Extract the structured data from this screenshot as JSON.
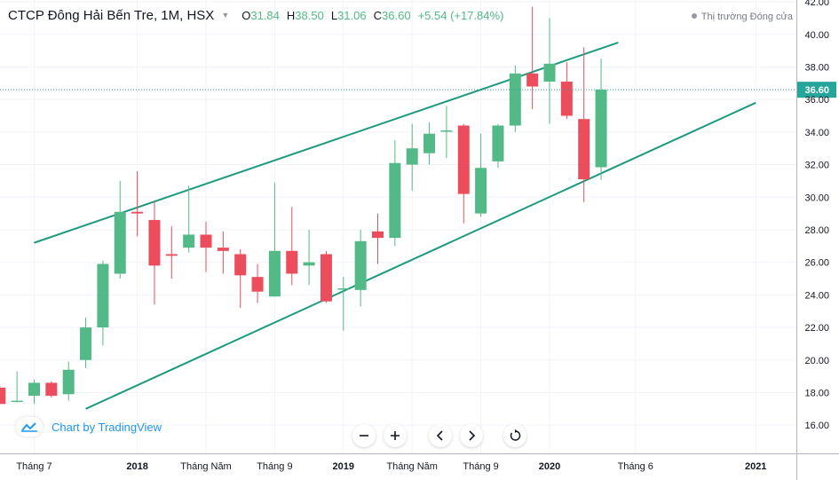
{
  "header": {
    "symbol": "CTCP Đông Hải Bến Tre, 1M, HSX",
    "open_label": "O",
    "open": "31.84",
    "high_label": "H",
    "high": "38.50",
    "low_label": "L",
    "low": "31.06",
    "close_label": "C",
    "close": "36.60",
    "change": "+5.54 (+17.84%)",
    "market_status": "Thị trường Đóng cửa"
  },
  "branding": {
    "text": "Chart by TradingView"
  },
  "toolbar": {
    "buttons": [
      "zoom-out",
      "zoom-in",
      "scroll-left",
      "scroll-right",
      "reset"
    ]
  },
  "colors": {
    "up": "#53b987",
    "down": "#eb4d5c",
    "trendline": "#1e9a7e",
    "last_price": "#26a69a",
    "grid": "#f0f3fa"
  },
  "chart_data": {
    "type": "candlestick",
    "interval": "1M",
    "y_axis": {
      "min": 15,
      "max": 42.5,
      "ticks": [
        "16.00",
        "18.00",
        "20.00",
        "22.00",
        "24.00",
        "26.00",
        "28.00",
        "30.00",
        "32.00",
        "34.00",
        "36.00",
        "38.00",
        "40.00",
        "42.00"
      ]
    },
    "x_axis": {
      "start": "2017-05",
      "end": "2021-01",
      "ticks": [
        {
          "label": "Tháng 7",
          "date": "2017-07"
        },
        {
          "label": "2018",
          "date": "2018-01",
          "bold": true
        },
        {
          "label": "Tháng Năm",
          "date": "2018-05"
        },
        {
          "label": "Tháng 9",
          "date": "2018-09"
        },
        {
          "label": "2019",
          "date": "2019-01",
          "bold": true
        },
        {
          "label": "Tháng Năm",
          "date": "2019-05"
        },
        {
          "label": "Tháng 9",
          "date": "2019-09"
        },
        {
          "label": "2020",
          "date": "2020-01",
          "bold": true
        },
        {
          "label": "Tháng 6",
          "date": "2020-06"
        },
        {
          "label": "2021",
          "date": "2021-01",
          "bold": true
        }
      ]
    },
    "last_price": "36.60",
    "candles": [
      {
        "date": "2017-05",
        "o": 18.3,
        "h": 18.4,
        "l": 17.3,
        "c": 17.3
      },
      {
        "date": "2017-06",
        "o": 17.5,
        "h": 19.3,
        "l": 17.4,
        "c": 17.5
      },
      {
        "date": "2017-07",
        "o": 17.8,
        "h": 18.8,
        "l": 17.3,
        "c": 18.6
      },
      {
        "date": "2017-08",
        "o": 18.6,
        "h": 18.7,
        "l": 17.7,
        "c": 17.8
      },
      {
        "date": "2017-09",
        "o": 17.9,
        "h": 19.9,
        "l": 17.5,
        "c": 19.4
      },
      {
        "date": "2017-10",
        "o": 20.0,
        "h": 22.6,
        "l": 19.5,
        "c": 22.0
      },
      {
        "date": "2017-11",
        "o": 22.0,
        "h": 26.1,
        "l": 20.9,
        "c": 25.9
      },
      {
        "date": "2017-12",
        "o": 25.3,
        "h": 31.0,
        "l": 25.0,
        "c": 29.1
      },
      {
        "date": "2018-01",
        "o": 29.1,
        "h": 31.6,
        "l": 27.6,
        "c": 29.0
      },
      {
        "date": "2018-02",
        "o": 28.6,
        "h": 29.8,
        "l": 23.4,
        "c": 25.8
      },
      {
        "date": "2018-03",
        "o": 26.5,
        "h": 28.2,
        "l": 25.0,
        "c": 26.4
      },
      {
        "date": "2018-04",
        "o": 26.9,
        "h": 30.7,
        "l": 26.6,
        "c": 27.7
      },
      {
        "date": "2018-05",
        "o": 27.7,
        "h": 28.5,
        "l": 25.4,
        "c": 26.9
      },
      {
        "date": "2018-06",
        "o": 26.9,
        "h": 27.9,
        "l": 25.3,
        "c": 26.7
      },
      {
        "date": "2018-07",
        "o": 26.5,
        "h": 26.8,
        "l": 23.2,
        "c": 25.2
      },
      {
        "date": "2018-08",
        "o": 25.1,
        "h": 25.9,
        "l": 23.5,
        "c": 24.2
      },
      {
        "date": "2018-09",
        "o": 23.9,
        "h": 30.9,
        "l": 23.9,
        "c": 26.7
      },
      {
        "date": "2018-10",
        "o": 26.7,
        "h": 29.4,
        "l": 24.6,
        "c": 25.3
      },
      {
        "date": "2018-11",
        "o": 25.8,
        "h": 28.0,
        "l": 24.6,
        "c": 26.0
      },
      {
        "date": "2018-12",
        "o": 26.5,
        "h": 26.7,
        "l": 23.5,
        "c": 23.6
      },
      {
        "date": "2019-01",
        "o": 24.4,
        "h": 25.1,
        "l": 21.8,
        "c": 24.4
      },
      {
        "date": "2019-02",
        "o": 24.3,
        "h": 28.0,
        "l": 23.3,
        "c": 27.3
      },
      {
        "date": "2019-03",
        "o": 27.9,
        "h": 29.0,
        "l": 25.9,
        "c": 27.5
      },
      {
        "date": "2019-04",
        "o": 27.5,
        "h": 33.5,
        "l": 27.0,
        "c": 32.1
      },
      {
        "date": "2019-05",
        "o": 32.0,
        "h": 34.5,
        "l": 30.4,
        "c": 33.0
      },
      {
        "date": "2019-06",
        "o": 32.7,
        "h": 34.6,
        "l": 32.0,
        "c": 33.9
      },
      {
        "date": "2019-07",
        "o": 34.1,
        "h": 35.6,
        "l": 32.4,
        "c": 34.1
      },
      {
        "date": "2019-08",
        "o": 34.4,
        "h": 34.5,
        "l": 28.4,
        "c": 30.2
      },
      {
        "date": "2019-09",
        "o": 29.0,
        "h": 33.9,
        "l": 28.8,
        "c": 31.8
      },
      {
        "date": "2019-10",
        "o": 32.2,
        "h": 34.5,
        "l": 31.8,
        "c": 34.4
      },
      {
        "date": "2019-11",
        "o": 34.4,
        "h": 38.1,
        "l": 34.0,
        "c": 37.6
      },
      {
        "date": "2019-12",
        "o": 37.6,
        "h": 41.7,
        "l": 35.4,
        "c": 36.8
      },
      {
        "date": "2020-01",
        "o": 37.1,
        "h": 41.0,
        "l": 34.5,
        "c": 38.2
      },
      {
        "date": "2020-02",
        "o": 37.1,
        "h": 38.3,
        "l": 34.8,
        "c": 35.0
      },
      {
        "date": "2020-03",
        "o": 34.8,
        "h": 39.2,
        "l": 29.7,
        "c": 31.1
      },
      {
        "date": "2020-04",
        "o": 31.84,
        "h": 38.5,
        "l": 31.06,
        "c": 36.6
      }
    ],
    "trendlines": [
      {
        "name": "upper-channel",
        "from": {
          "date": "2017-07",
          "y": 27.2
        },
        "to": {
          "date": "2020-05",
          "y": 39.5
        }
      },
      {
        "name": "lower-channel",
        "from": {
          "date": "2017-10",
          "y": 17.0
        },
        "to": {
          "date": "2021-01",
          "y": 35.8
        }
      }
    ]
  }
}
